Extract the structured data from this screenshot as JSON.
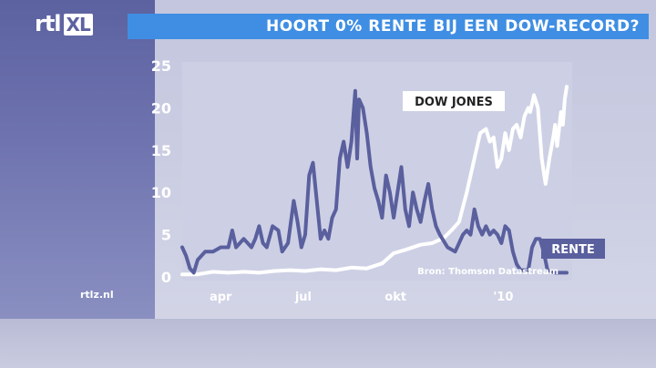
{
  "header": {
    "logo": "rtl",
    "logo_xl": "XL",
    "title": "HOORT 0% RENTE BIJ EEN DOW-RECORD?",
    "site": "rtlz.nl"
  },
  "colors": {
    "title_bar": "#3f8ee3",
    "dow_line": "#ffffff",
    "rente_line": "#5a5f9e",
    "plot_bg": "#cdd0e4"
  },
  "chart_data": {
    "type": "line",
    "title": "HOORT 0% RENTE BIJ EEN DOW-RECORD?",
    "source": "Bron: Thomson Datastream",
    "ylim": [
      0,
      25
    ],
    "yticks": [
      "0",
      "5",
      "10",
      "15",
      "20",
      "25"
    ],
    "xticks": [
      {
        "label": "apr",
        "pos": 0.1
      },
      {
        "label": "jul",
        "pos": 0.315
      },
      {
        "label": "okt",
        "pos": 0.555
      },
      {
        "label": "'10",
        "pos": 0.835
      }
    ],
    "series": [
      {
        "name": "DOW JONES",
        "color": "#ffffff",
        "points": [
          [
            0,
            0.3
          ],
          [
            0.04,
            0.3
          ],
          [
            0.08,
            0.6
          ],
          [
            0.12,
            0.5
          ],
          [
            0.16,
            0.6
          ],
          [
            0.2,
            0.5
          ],
          [
            0.24,
            0.7
          ],
          [
            0.28,
            0.8
          ],
          [
            0.32,
            0.7
          ],
          [
            0.36,
            0.9
          ],
          [
            0.4,
            0.8
          ],
          [
            0.44,
            1.1
          ],
          [
            0.48,
            1.0
          ],
          [
            0.52,
            1.6
          ],
          [
            0.55,
            2.8
          ],
          [
            0.58,
            3.2
          ],
          [
            0.62,
            3.8
          ],
          [
            0.65,
            4.0
          ],
          [
            0.68,
            4.6
          ],
          [
            0.7,
            5.5
          ],
          [
            0.72,
            6.5
          ],
          [
            0.74,
            10
          ],
          [
            0.76,
            14
          ],
          [
            0.775,
            17
          ],
          [
            0.79,
            17.5
          ],
          [
            0.8,
            16
          ],
          [
            0.81,
            16.5
          ],
          [
            0.82,
            13
          ],
          [
            0.83,
            14
          ],
          [
            0.84,
            17
          ],
          [
            0.85,
            15
          ],
          [
            0.86,
            17.5
          ],
          [
            0.87,
            18
          ],
          [
            0.88,
            16.5
          ],
          [
            0.89,
            19
          ],
          [
            0.9,
            20
          ],
          [
            0.905,
            19.5
          ],
          [
            0.915,
            21.5
          ],
          [
            0.925,
            20
          ],
          [
            0.935,
            14
          ],
          [
            0.945,
            11
          ],
          [
            0.955,
            14
          ],
          [
            0.965,
            16.5
          ],
          [
            0.97,
            18
          ],
          [
            0.975,
            15.5
          ],
          [
            0.985,
            19.5
          ],
          [
            0.99,
            18
          ],
          [
            0.995,
            21
          ],
          [
            1.0,
            22.5
          ]
        ]
      },
      {
        "name": "RENTE",
        "color": "#5a5f9e",
        "points": [
          [
            0,
            3.5
          ],
          [
            0.01,
            2.5
          ],
          [
            0.02,
            1.0
          ],
          [
            0.03,
            0.5
          ],
          [
            0.04,
            2.0
          ],
          [
            0.06,
            3.0
          ],
          [
            0.08,
            3.0
          ],
          [
            0.1,
            3.5
          ],
          [
            0.12,
            3.5
          ],
          [
            0.13,
            5.5
          ],
          [
            0.14,
            3.5
          ],
          [
            0.16,
            4.5
          ],
          [
            0.18,
            3.5
          ],
          [
            0.19,
            4.5
          ],
          [
            0.2,
            6
          ],
          [
            0.21,
            4.0
          ],
          [
            0.22,
            3.5
          ],
          [
            0.235,
            6
          ],
          [
            0.25,
            5.5
          ],
          [
            0.26,
            3.0
          ],
          [
            0.275,
            4.0
          ],
          [
            0.29,
            9
          ],
          [
            0.3,
            6.5
          ],
          [
            0.31,
            3.5
          ],
          [
            0.32,
            5
          ],
          [
            0.33,
            12
          ],
          [
            0.34,
            13.5
          ],
          [
            0.35,
            9
          ],
          [
            0.36,
            4.5
          ],
          [
            0.37,
            5.5
          ],
          [
            0.38,
            4.5
          ],
          [
            0.39,
            7
          ],
          [
            0.4,
            8
          ],
          [
            0.41,
            14
          ],
          [
            0.42,
            16
          ],
          [
            0.43,
            13
          ],
          [
            0.44,
            16
          ],
          [
            0.45,
            22
          ],
          [
            0.455,
            14
          ],
          [
            0.46,
            21
          ],
          [
            0.47,
            20
          ],
          [
            0.48,
            17
          ],
          [
            0.49,
            13
          ],
          [
            0.5,
            10.5
          ],
          [
            0.51,
            9
          ],
          [
            0.52,
            7
          ],
          [
            0.53,
            12
          ],
          [
            0.54,
            10
          ],
          [
            0.55,
            7
          ],
          [
            0.56,
            10
          ],
          [
            0.57,
            13
          ],
          [
            0.58,
            8
          ],
          [
            0.59,
            6
          ],
          [
            0.6,
            10
          ],
          [
            0.61,
            8
          ],
          [
            0.62,
            6.5
          ],
          [
            0.63,
            9
          ],
          [
            0.64,
            11
          ],
          [
            0.65,
            8
          ],
          [
            0.66,
            6
          ],
          [
            0.67,
            5
          ],
          [
            0.69,
            3.5
          ],
          [
            0.71,
            3
          ],
          [
            0.73,
            5
          ],
          [
            0.74,
            5.5
          ],
          [
            0.75,
            5
          ],
          [
            0.76,
            8
          ],
          [
            0.77,
            6
          ],
          [
            0.78,
            5
          ],
          [
            0.79,
            6
          ],
          [
            0.8,
            5
          ],
          [
            0.81,
            5.5
          ],
          [
            0.82,
            5
          ],
          [
            0.83,
            4
          ],
          [
            0.84,
            6
          ],
          [
            0.85,
            5.5
          ],
          [
            0.86,
            3
          ],
          [
            0.87,
            1.5
          ],
          [
            0.88,
            0.8
          ],
          [
            0.9,
            0.8
          ],
          [
            0.91,
            3.5
          ],
          [
            0.92,
            4.5
          ],
          [
            0.93,
            4.5
          ],
          [
            0.94,
            3
          ],
          [
            0.95,
            0.8
          ],
          [
            0.97,
            0.5
          ],
          [
            1.0,
            0.5
          ]
        ]
      }
    ]
  }
}
